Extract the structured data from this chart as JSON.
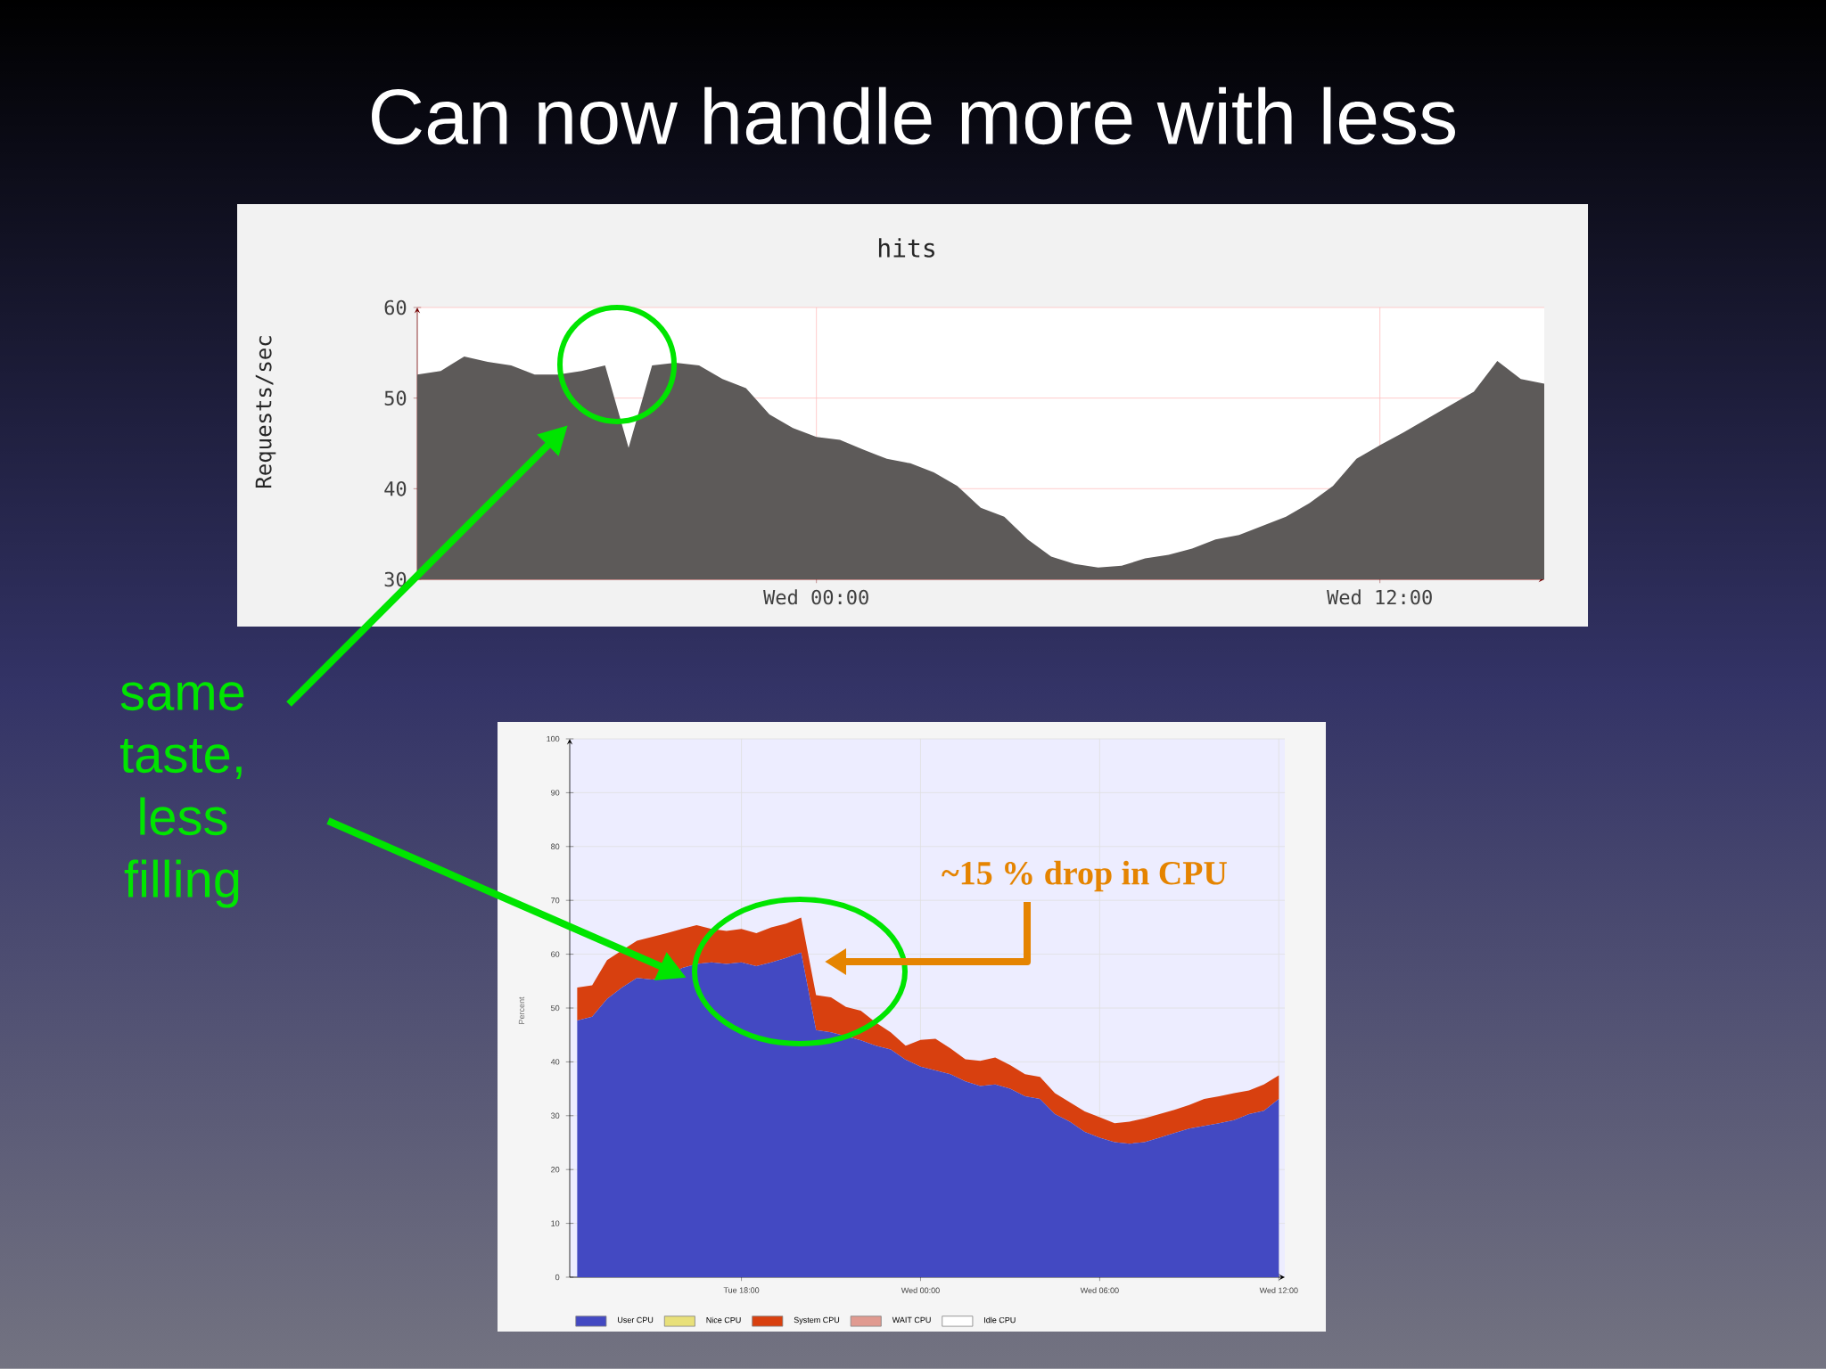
{
  "chart_data": [
    {
      "type": "area",
      "title": "Can now handle more with less",
      "subtitle": "hits",
      "ylabel": "Requests/sec",
      "annotations": [
        "same taste, less filling"
      ],
      "color": "#5d5a59",
      "categories": [
        null,
        null,
        null,
        null,
        null,
        null,
        null,
        null,
        null,
        null,
        null,
        null,
        null,
        null,
        null,
        null,
        null,
        "Wed 00:00",
        null,
        null,
        null,
        null,
        null,
        null,
        null,
        null,
        null,
        null,
        null,
        null,
        null,
        null,
        null,
        null,
        null,
        null,
        null,
        null,
        null,
        null,
        null,
        "Wed 12:00",
        null,
        null,
        null,
        null,
        null,
        null,
        null
      ],
      "values": [
        52.6,
        53,
        54.6,
        54,
        53.6,
        52.6,
        52.6,
        53,
        53.6,
        44.5,
        53.6,
        53.9,
        53.6,
        52.1,
        51.1,
        48.2,
        46.7,
        45.7,
        45.4,
        44.3,
        43.3,
        42.8,
        41.8,
        40.3,
        37.9,
        36.9,
        34.4,
        32.5,
        31.7,
        31.3,
        31.5,
        32.3,
        32.7,
        33.4,
        34.4,
        34.9,
        35.9,
        36.9,
        38.4,
        40.3,
        43.3,
        44.8,
        46.2,
        47.7,
        49.2,
        50.7,
        54.1,
        52.1,
        51.6
      ],
      "ylim": [
        30,
        60
      ],
      "yticks": [
        30,
        40,
        50,
        60
      ],
      "grid": true
    },
    {
      "type": "area",
      "stacked": true,
      "ylabel": "Percent",
      "annotations": [
        "~15 % drop in CPU"
      ],
      "legend": "bottom",
      "grid": true,
      "categories": [
        null,
        null,
        null,
        null,
        null,
        null,
        null,
        null,
        null,
        null,
        null,
        "Tue 18:00",
        null,
        null,
        null,
        null,
        null,
        null,
        null,
        null,
        null,
        null,
        null,
        "Wed 00:00",
        null,
        null,
        null,
        null,
        null,
        null,
        null,
        null,
        null,
        null,
        null,
        "Wed 06:00",
        null,
        null,
        null,
        null,
        null,
        null,
        null,
        null,
        null,
        null,
        null,
        "Wed 12:00"
      ],
      "series": [
        {
          "name": "User CPU",
          "color": "#4349c2",
          "values": [
            47.7,
            48.4,
            51.7,
            53.8,
            55.6,
            55.3,
            55.6,
            57.4,
            58.2,
            58.5,
            58.2,
            58.5,
            57.8,
            58.5,
            59.3,
            60.3,
            45.9,
            45.5,
            44.8,
            44.0,
            43.0,
            42.3,
            40.4,
            39.1,
            38.4,
            37.7,
            36.4,
            35.5,
            35.8,
            35.0,
            33.6,
            33.1,
            30.3,
            28.9,
            27.0,
            25.9,
            25.1,
            24.8,
            25.1,
            25.9,
            26.8,
            27.6,
            28.1,
            28.6,
            29.2,
            30.3,
            30.9,
            33.1
          ]
        },
        {
          "name": "Nice CPU",
          "color": "#e8e07a",
          "values": [
            null,
            null,
            null,
            null,
            null,
            null,
            null,
            null,
            null,
            null,
            null,
            null,
            null,
            null,
            null,
            null,
            null,
            null,
            null,
            null,
            null,
            null,
            null,
            null,
            null,
            null,
            null,
            null,
            null,
            null,
            null,
            null,
            null,
            null,
            null,
            null,
            null,
            null,
            null,
            null,
            null,
            null,
            null,
            null,
            null,
            null,
            null,
            null
          ]
        },
        {
          "name": "System CPU",
          "color": "#d8400f",
          "values": [
            6.1,
            5.8,
            7.2,
            6.9,
            6.9,
            7.9,
            8.3,
            7.3,
            7.2,
            6.2,
            6.1,
            6.2,
            6.1,
            6.5,
            6.4,
            6.5,
            6.5,
            6.5,
            5.4,
            5.5,
            4.3,
            3.2,
            2.6,
            5.0,
            5.9,
            4.8,
            4.1,
            4.7,
            5.0,
            4.4,
            4.1,
            4.1,
            3.9,
            3.6,
            3.8,
            3.8,
            3.5,
            4.1,
            4.4,
            4.4,
            4.3,
            4.4,
            5.0,
            5.0,
            5.0,
            4.4,
            4.9,
            4.4
          ]
        },
        {
          "name": "WAIT CPU",
          "color": "#e09a90",
          "values": [
            null,
            null,
            null,
            null,
            null,
            null,
            null,
            null,
            null,
            null,
            null,
            null,
            null,
            null,
            null,
            null,
            null,
            null,
            null,
            null,
            null,
            null,
            null,
            null,
            null,
            null,
            null,
            null,
            null,
            null,
            null,
            null,
            null,
            null,
            null,
            null,
            null,
            null,
            null,
            null,
            null,
            null,
            null,
            null,
            null,
            null,
            null,
            null
          ]
        },
        {
          "name": "Idle CPU",
          "color": "#ffffff",
          "values": [
            null,
            null,
            null,
            null,
            null,
            null,
            null,
            null,
            null,
            null,
            null,
            null,
            null,
            null,
            null,
            null,
            null,
            null,
            null,
            null,
            null,
            null,
            null,
            null,
            null,
            null,
            null,
            null,
            null,
            null,
            null,
            null,
            null,
            null,
            null,
            null,
            null,
            null,
            null,
            null,
            null,
            null,
            null,
            null,
            null,
            null,
            null,
            null
          ]
        }
      ],
      "ylim": [
        0,
        100
      ],
      "yticks": [
        0,
        10,
        20,
        30,
        40,
        50,
        60,
        70,
        80,
        90,
        100
      ]
    }
  ]
}
